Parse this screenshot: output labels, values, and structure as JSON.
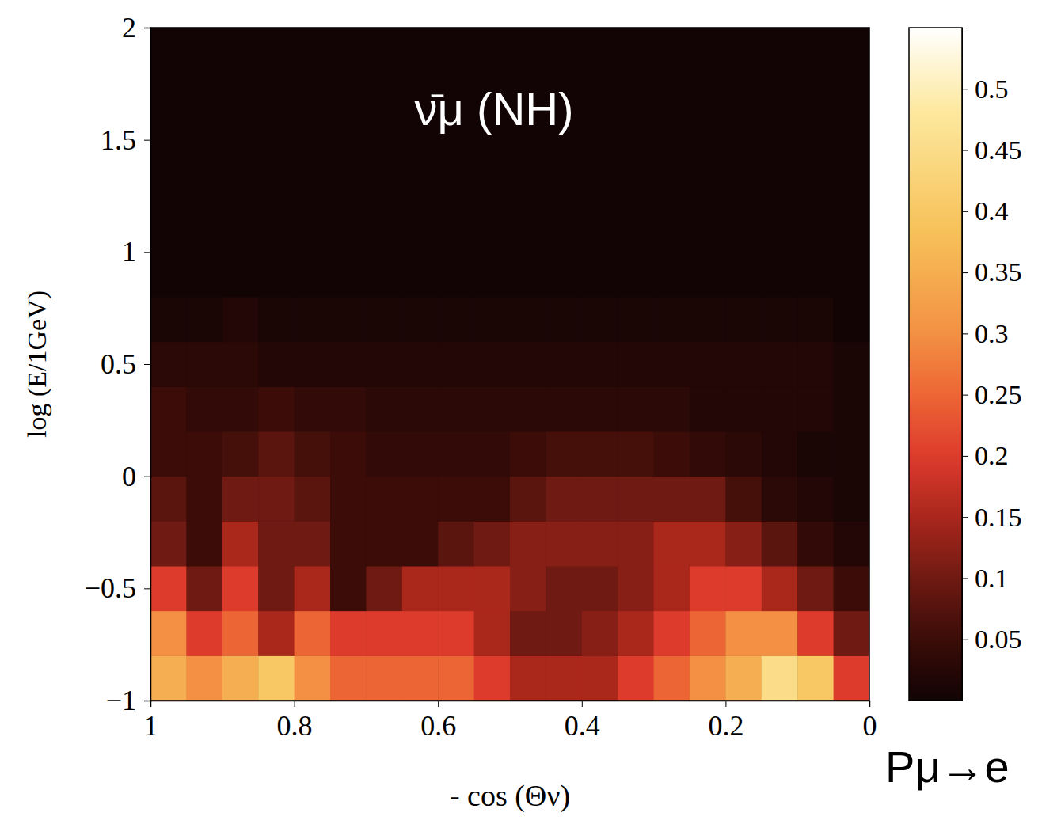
{
  "chart_data": {
    "type": "heatmap",
    "title": "ν̄μ (NH)",
    "x_label": "- cos (Θν)",
    "y_label": "log (E/1GeV)",
    "xlim": [
      1,
      0
    ],
    "xticks": [
      1,
      0.8,
      0.6,
      0.4,
      0.2,
      0
    ],
    "ylim": [
      -1,
      2
    ],
    "yticks": [
      {
        "value": -1,
        "label": "−1"
      },
      {
        "value": -0.5,
        "label": "−0.5"
      },
      0,
      0.5,
      1,
      1.5,
      2
    ],
    "x": [
      0.975,
      0.925,
      0.875,
      0.825,
      0.775,
      0.725,
      0.675,
      0.625,
      0.575,
      0.525,
      0.475,
      0.425,
      0.375,
      0.325,
      0.275,
      0.225,
      0.175,
      0.125,
      0.075,
      0.025
    ],
    "y": [
      -0.9,
      -0.7,
      -0.5,
      -0.3,
      -0.1,
      0.1,
      0.3,
      0.5,
      0.7,
      0.9,
      1.1,
      1.3,
      1.5,
      1.7,
      1.9
    ],
    "z": [
      [
        0.35,
        0.3,
        0.35,
        0.4,
        0.3,
        0.25,
        0.25,
        0.25,
        0.25,
        0.2,
        0.15,
        0.15,
        0.15,
        0.2,
        0.25,
        0.3,
        0.35,
        0.45,
        0.4,
        0.2
      ],
      [
        0.3,
        0.2,
        0.25,
        0.15,
        0.25,
        0.2,
        0.2,
        0.2,
        0.2,
        0.15,
        0.1,
        0.1,
        0.12,
        0.15,
        0.2,
        0.25,
        0.3,
        0.3,
        0.2,
        0.1
      ],
      [
        0.2,
        0.1,
        0.2,
        0.1,
        0.15,
        0.05,
        0.1,
        0.15,
        0.15,
        0.15,
        0.12,
        0.1,
        0.1,
        0.12,
        0.15,
        0.2,
        0.2,
        0.15,
        0.1,
        0.05
      ],
      [
        0.1,
        0.05,
        0.15,
        0.1,
        0.1,
        0.05,
        0.05,
        0.05,
        0.08,
        0.1,
        0.12,
        0.12,
        0.12,
        0.12,
        0.15,
        0.15,
        0.12,
        0.08,
        0.04,
        0.02
      ],
      [
        0.08,
        0.05,
        0.1,
        0.1,
        0.08,
        0.05,
        0.05,
        0.05,
        0.05,
        0.05,
        0.08,
        0.1,
        0.1,
        0.1,
        0.1,
        0.1,
        0.06,
        0.03,
        0.02,
        0.01
      ],
      [
        0.05,
        0.05,
        0.06,
        0.08,
        0.06,
        0.05,
        0.04,
        0.04,
        0.04,
        0.04,
        0.05,
        0.06,
        0.06,
        0.06,
        0.05,
        0.04,
        0.03,
        0.02,
        0.01,
        0.01
      ],
      [
        0.05,
        0.04,
        0.04,
        0.05,
        0.04,
        0.04,
        0.03,
        0.03,
        0.03,
        0.03,
        0.03,
        0.03,
        0.03,
        0.03,
        0.03,
        0.02,
        0.02,
        0.02,
        0.02,
        0.01
      ],
      [
        0.03,
        0.03,
        0.03,
        0.02,
        0.02,
        0.02,
        0.02,
        0.02,
        0.02,
        0.02,
        0.02,
        0.02,
        0.02,
        0.02,
        0.02,
        0.02,
        0.02,
        0.02,
        0.02,
        0.01
      ],
      [
        0.01,
        0.01,
        0.02,
        0.01,
        0.01,
        0.01,
        0.01,
        0.01,
        0.01,
        0.01,
        0.01,
        0.01,
        0.01,
        0.01,
        0.01,
        0.01,
        0.01,
        0.01,
        0.01,
        0
      ],
      [
        0,
        0,
        0,
        0,
        0,
        0,
        0,
        0,
        0,
        0,
        0,
        0,
        0,
        0,
        0,
        0,
        0,
        0,
        0,
        0
      ],
      [
        0,
        0,
        0,
        0,
        0,
        0,
        0,
        0,
        0,
        0,
        0,
        0,
        0,
        0,
        0,
        0,
        0,
        0,
        0,
        0
      ],
      [
        0,
        0,
        0,
        0,
        0,
        0,
        0,
        0,
        0,
        0,
        0,
        0,
        0,
        0,
        0,
        0,
        0,
        0,
        0,
        0
      ],
      [
        0,
        0,
        0,
        0,
        0,
        0,
        0,
        0,
        0,
        0,
        0,
        0,
        0,
        0,
        0,
        0,
        0,
        0,
        0,
        0
      ],
      [
        0,
        0,
        0,
        0,
        0,
        0,
        0,
        0,
        0,
        0,
        0,
        0,
        0,
        0,
        0,
        0,
        0,
        0,
        0,
        0
      ],
      [
        0,
        0,
        0,
        0,
        0,
        0,
        0,
        0,
        0,
        0,
        0,
        0,
        0,
        0,
        0,
        0,
        0,
        0,
        0,
        0
      ]
    ],
    "colorbar": {
      "label": "Pμ→e",
      "range": [
        0,
        0.55
      ],
      "ticks": [
        0.05,
        0.1,
        0.15,
        0.2,
        0.25,
        0.3,
        0.35,
        0.4,
        0.45,
        0.5
      ]
    }
  }
}
